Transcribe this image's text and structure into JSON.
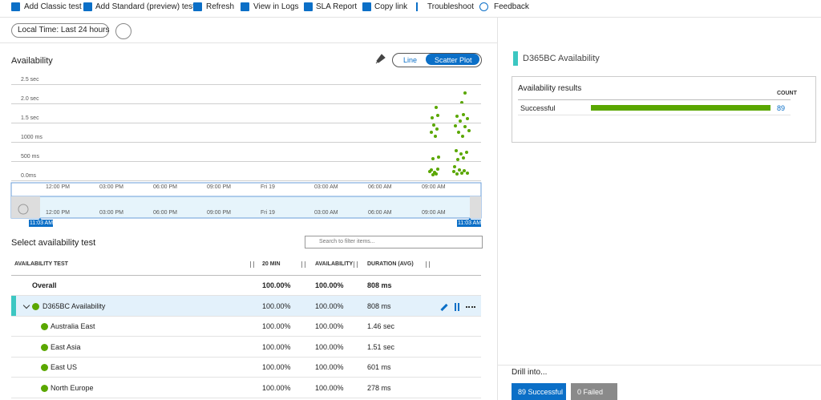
{
  "toolbar": [
    "Add Classic test",
    "Add Standard (preview) test",
    "Refresh",
    "View in Logs",
    "SLA Report",
    "Copy link",
    "Troubleshoot",
    "Feedback"
  ],
  "time_filter": "Local Time: Last 24 hours",
  "chart": {
    "title": "Availability",
    "toggle": [
      "Line",
      "Scatter Plot"
    ],
    "yticks": [
      "2.5 sec",
      "2.0 sec",
      "1.5 sec",
      "1000 ms",
      "500 ms",
      "0.0ms"
    ],
    "xticks": [
      "12:00 PM",
      "03:00 PM",
      "06:00 PM",
      "09:00 PM",
      "Fri 19",
      "03:00 AM",
      "06:00 AM",
      "09:00 AM"
    ],
    "brush_start": "11:03 AM",
    "brush_end": "11:03 AM"
  },
  "table": {
    "title": "Select availability test",
    "search_placeholder": "Search to filter items...",
    "columns": [
      "AVAILABILITY TEST",
      "20 MIN",
      "AVAILABILITY",
      "DURATION (AVG)"
    ],
    "rows": [
      [
        "Overall",
        "100.00%",
        "100.00%",
        "808 ms"
      ],
      [
        "D365BC Availability",
        "100.00%",
        "100.00%",
        "808 ms"
      ],
      [
        "Australia East",
        "100.00%",
        "100.00%",
        "1.46 sec"
      ],
      [
        "East Asia",
        "100.00%",
        "100.00%",
        "1.51 sec"
      ],
      [
        "East US",
        "100.00%",
        "100.00%",
        "601 ms"
      ],
      [
        "North Europe",
        "100.00%",
        "100.00%",
        "278 ms"
      ]
    ]
  },
  "side": {
    "title": "D365BC Availability",
    "card_title": "Availability results",
    "count_header": "COUNT",
    "result_label": "Successful",
    "result_count": 89,
    "drill_title": "Drill into...",
    "buttons": [
      "89 Successful",
      "0 Failed"
    ]
  }
}
